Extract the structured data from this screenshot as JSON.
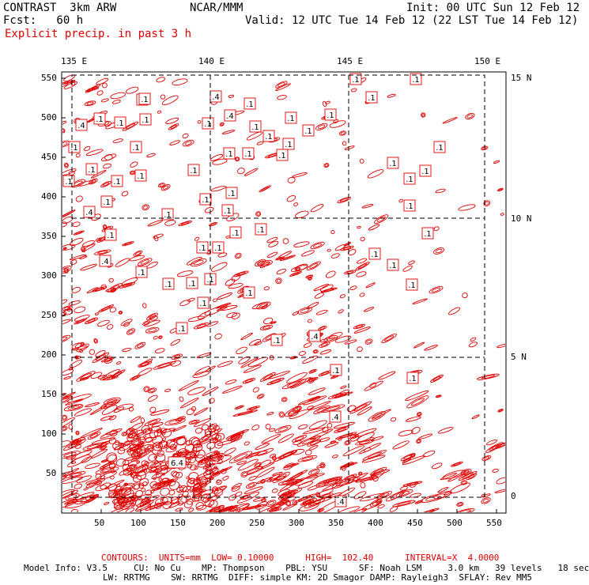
{
  "header": {
    "title": "CONTRAST  3km ARW",
    "org": "NCAR/MMM",
    "init": "Init: 00 UTC Sun 12 Feb 12",
    "fcst": "Fcst:   60 h",
    "valid": "Valid: 12 UTC Tue 14 Feb 12 (22 LST Tue 14 Feb 12)",
    "field": "Explicit precip. in past 3 h"
  },
  "axes": {
    "lon_labels": [
      "135 E",
      "140 E",
      "145 E",
      "150 E"
    ],
    "lat_labels": [
      "15 N",
      "10 N",
      "5 N",
      "0"
    ],
    "x_ticks": [
      "50",
      "100",
      "150",
      "200",
      "250",
      "300",
      "350",
      "400",
      "450",
      "500",
      "550"
    ],
    "y_ticks": [
      "550",
      "500",
      "450",
      "400",
      "350",
      "300",
      "250",
      "200",
      "150",
      "100",
      "50"
    ]
  },
  "contour_labels": [
    ".1",
    ".4",
    "6.4"
  ],
  "footer": {
    "contours": "CONTOURS:  UNITS=mm  LOW= 0.10000      HIGH=  102.40      INTERVAL=X  4.0000",
    "model_line1": "Model Info: V3.5     CU: No Cu    MP: Thompson    PBL: YSU      SF: Noah LSM     3.0 km   39 levels   18 sec",
    "model_line2": "LW: RRTMG    SW: RRTMG  DIFF: simple KM: 2D Smagor DAMP: Rayleigh3  SFLAY: Rev MM5"
  },
  "colors": {
    "contour": "#e00000",
    "frame": "#000000",
    "grid": "#000000"
  }
}
